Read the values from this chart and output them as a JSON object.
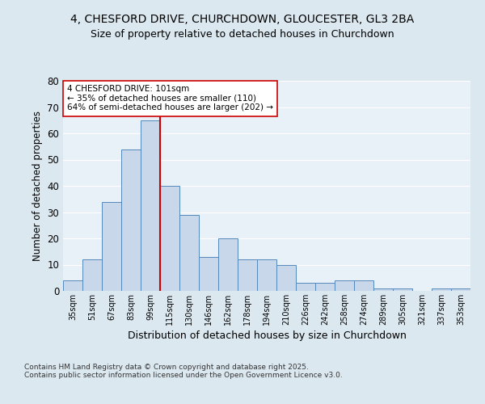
{
  "title_line1": "4, CHESFORD DRIVE, CHURCHDOWN, GLOUCESTER, GL3 2BA",
  "title_line2": "Size of property relative to detached houses in Churchdown",
  "xlabel": "Distribution of detached houses by size in Churchdown",
  "ylabel": "Number of detached properties",
  "bar_labels": [
    "35sqm",
    "51sqm",
    "67sqm",
    "83sqm",
    "99sqm",
    "115sqm",
    "130sqm",
    "146sqm",
    "162sqm",
    "178sqm",
    "194sqm",
    "210sqm",
    "226sqm",
    "242sqm",
    "258sqm",
    "274sqm",
    "289sqm",
    "305sqm",
    "321sqm",
    "337sqm",
    "353sqm"
  ],
  "bar_values": [
    4,
    12,
    34,
    54,
    65,
    40,
    29,
    13,
    20,
    12,
    12,
    10,
    3,
    3,
    4,
    4,
    1,
    1,
    0,
    1,
    1
  ],
  "bar_color": "#c8d8ea",
  "bar_edge_color": "#5588bb",
  "ylim": [
    0,
    80
  ],
  "yticks": [
    0,
    10,
    20,
    30,
    40,
    50,
    60,
    70,
    80
  ],
  "vline_x_index": 4.5,
  "vline_color": "#cc0000",
  "annotation_text": "4 CHESFORD DRIVE: 101sqm\n← 35% of detached houses are smaller (110)\n64% of semi-detached houses are larger (202) →",
  "annotation_box_color": "#ffffff",
  "annotation_box_edge_color": "#cc0000",
  "footnote": "Contains HM Land Registry data © Crown copyright and database right 2025.\nContains public sector information licensed under the Open Government Licence v3.0.",
  "bg_color": "#dce8f0",
  "plot_bg_color": "#e8f0f8",
  "grid_color": "#ffffff"
}
